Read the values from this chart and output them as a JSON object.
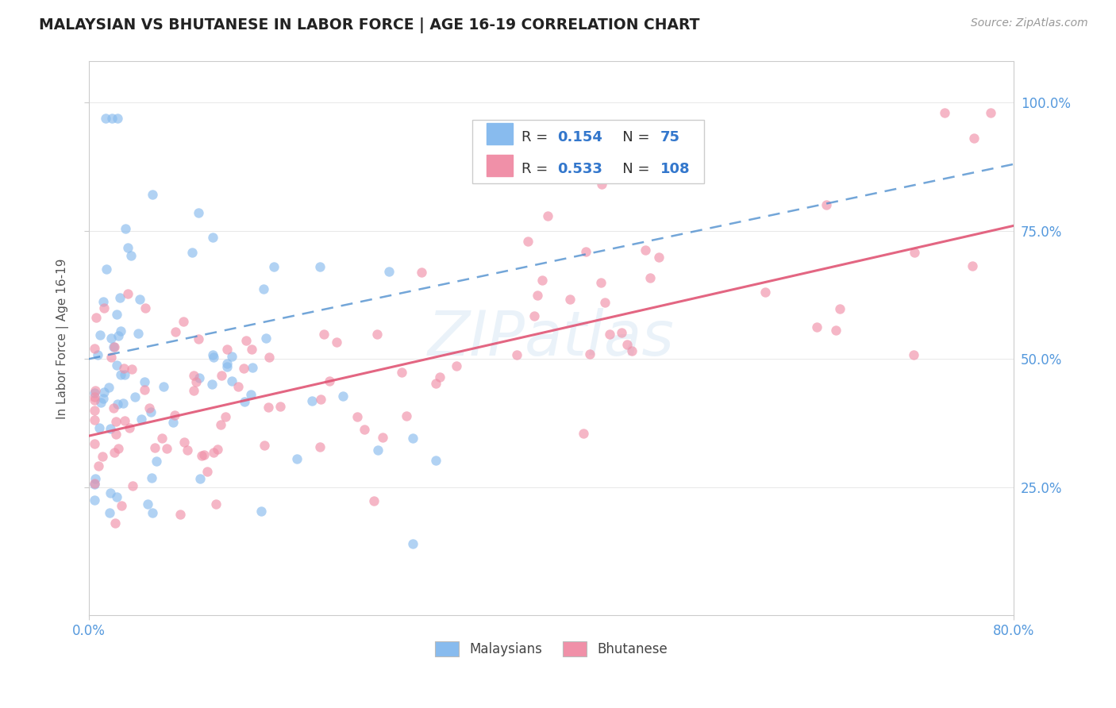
{
  "title": "MALAYSIAN VS BHUTANESE IN LABOR FORCE | AGE 16-19 CORRELATION CHART",
  "source_text": "Source: ZipAtlas.com",
  "ylabel": "In Labor Force | Age 16-19",
  "r_malaysians": 0.154,
  "n_malaysians": 75,
  "r_bhutanese": 0.533,
  "n_bhutanese": 108,
  "xlim": [
    0.0,
    0.8
  ],
  "ylim": [
    0.0,
    1.08
  ],
  "background_color": "#ffffff",
  "scatter_alpha": 0.65,
  "scatter_size": 80,
  "malaysian_color": "#88bbee",
  "bhutanese_color": "#f090a8",
  "trend_malaysian_color": "#4488cc",
  "trend_bhutanese_color": "#e05575",
  "tick_color": "#5599dd",
  "grid_color": "#dddddd",
  "title_color": "#222222",
  "source_color": "#999999",
  "ylabel_color": "#555555",
  "watermark_color": "#cce0f0",
  "watermark_alpha": 0.4,
  "ytick_vals": [
    0.25,
    0.5,
    0.75,
    1.0
  ],
  "ytick_labels": [
    "25.0%",
    "50.0%",
    "75.0%",
    "100.0%"
  ],
  "xtick_vals": [
    0.0,
    0.8
  ],
  "xtick_labels": [
    "0.0%",
    "80.0%"
  ],
  "legend_r_color": "#3377cc",
  "legend_n_color": "#3377cc"
}
